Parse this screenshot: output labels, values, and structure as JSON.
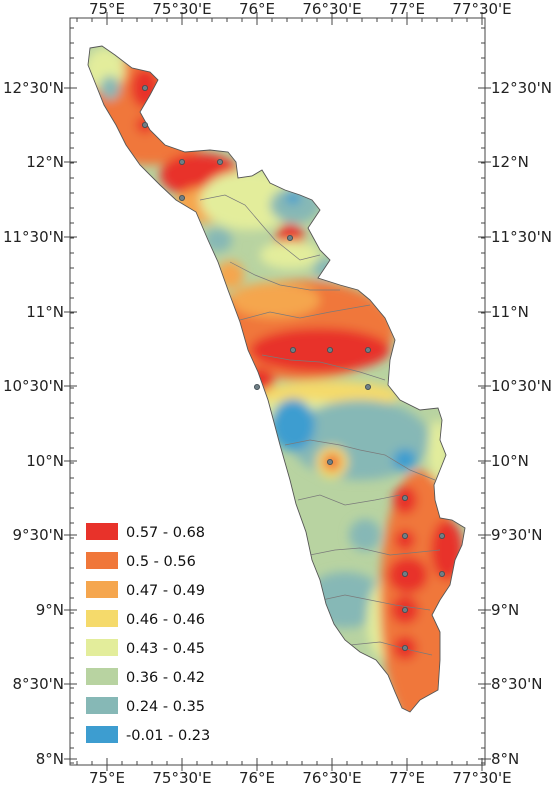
{
  "map": {
    "top_ticks": [
      "75°E",
      "75°30'E",
      "76°E",
      "76°30'E",
      "77°E",
      "77°30'E"
    ],
    "bottom_ticks": [
      "75°E",
      "75°30'E",
      "76°E",
      "76°30'E",
      "77°E",
      "77°30'E"
    ],
    "left_ticks": [
      "12°30'N",
      "12°N",
      "11°30'N",
      "11°N",
      "10°30'N",
      "10°N",
      "9°30'N",
      "9°N",
      "8°30'N",
      "8°N"
    ],
    "right_ticks": [
      "12°30'N",
      "12°N",
      "11°30'N",
      "11°N",
      "10°30'N",
      "10°N",
      "9°30'N",
      "9°N",
      "8°30'N",
      "8°N"
    ]
  },
  "legend": {
    "classes": [
      {
        "label": "0.57 - 0.68",
        "color": "#e8322a"
      },
      {
        "label": "0.5 - 0.56",
        "color": "#f0773a"
      },
      {
        "label": "0.47 - 0.49",
        "color": "#f5a64e"
      },
      {
        "label": "0.46 - 0.46",
        "color": "#f5da6b"
      },
      {
        "label": "0.43 - 0.45",
        "color": "#e3ed9b"
      },
      {
        "label": "0.36 - 0.42",
        "color": "#b8d3a1"
      },
      {
        "label": "0.24 - 0.35",
        "color": "#86b8b6"
      },
      {
        "label": "-0.01 - 0.23",
        "color": "#3d9dd0"
      }
    ]
  },
  "colors": {
    "frame": "#444444",
    "district_boundary": "#7a7a7a",
    "station_marker": "#6f7f86"
  }
}
